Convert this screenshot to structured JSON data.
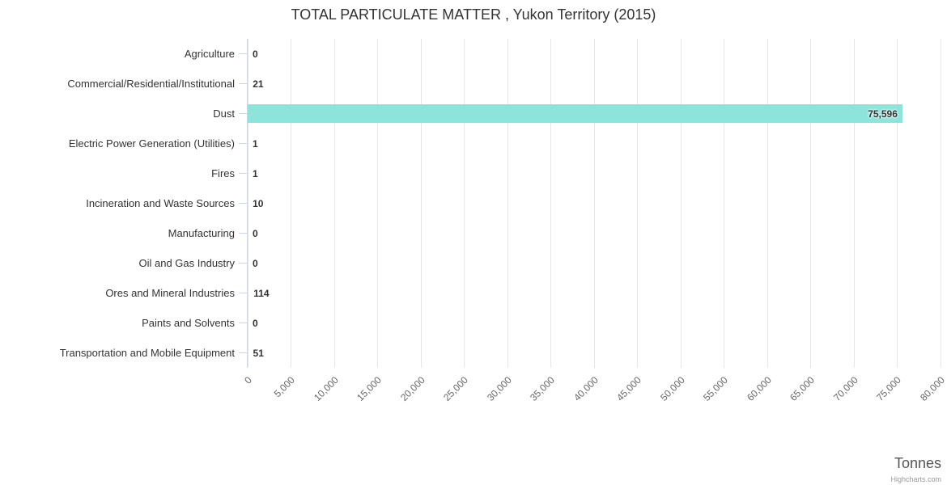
{
  "title": "TOTAL PARTICULATE MATTER , Yukon Territory (2015)",
  "axis_title": "Tonnes",
  "credit": {
    "label": "Highcharts.com"
  },
  "chart_data": {
    "type": "bar",
    "orientation": "horizontal",
    "title": "TOTAL PARTICULATE MATTER , Yukon Territory (2015)",
    "categories": [
      "Agriculture",
      "Commercial/Residential/Institutional",
      "Dust",
      "Electric Power Generation (Utilities)",
      "Fires",
      "Incineration and Waste Sources",
      "Manufacturing",
      "Oil and Gas Industry",
      "Ores and Mineral Industries",
      "Paints and Solvents",
      "Transportation and Mobile Equipment"
    ],
    "values": [
      0,
      21,
      75596,
      1,
      1,
      10,
      0,
      0,
      114,
      0,
      51
    ],
    "value_labels": [
      "0",
      "21",
      "75,596",
      "1",
      "1",
      "10",
      "0",
      "0",
      "114",
      "0",
      "51"
    ],
    "xlabel": "Tonnes",
    "ylabel": "",
    "xlim": [
      0,
      80000
    ],
    "tick_interval": 5000,
    "tick_labels": [
      "0",
      "5,000",
      "10,000",
      "15,000",
      "20,000",
      "25,000",
      "30,000",
      "35,000",
      "40,000",
      "45,000",
      "50,000",
      "55,000",
      "60,000",
      "65,000",
      "70,000",
      "75,000",
      "80,000"
    ],
    "grid": true,
    "legend_position": "none",
    "bar_color": "#8de4da",
    "grid_color": "#e6e6e6",
    "axis_line_color": "#ccd6eb",
    "label_color": "#333333",
    "tick_label_color": "#666666"
  }
}
